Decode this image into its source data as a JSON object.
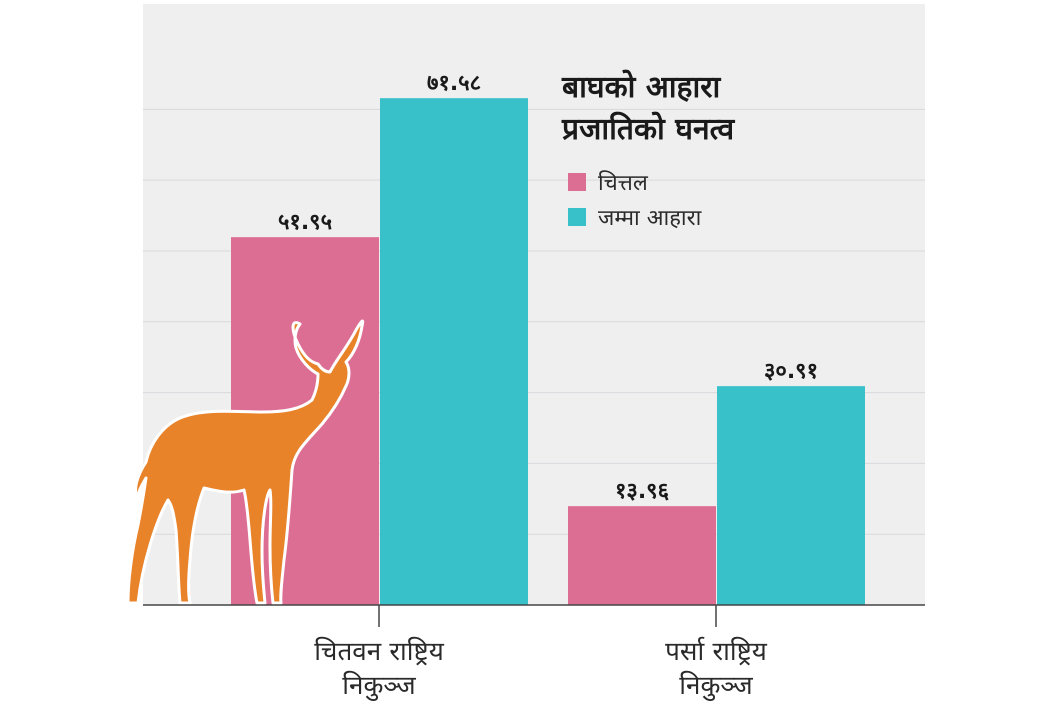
{
  "chart_data": {
    "type": "bar",
    "title_lines": [
      "बाघको आहारा",
      "प्रजातिको घनत्व"
    ],
    "categories": [
      {
        "lines": [
          "चितवन राष्ट्रिय",
          "निकुञ्ज"
        ]
      },
      {
        "lines": [
          "पर्सा राष्ट्रिय",
          "निकुञ्ज"
        ]
      }
    ],
    "series": [
      {
        "name": "चित्तल",
        "color": "#dd6e93",
        "values": [
          51.95,
          13.96
        ],
        "labels": [
          "५१.९५",
          "१३.९६"
        ]
      },
      {
        "name": "जम्मा आहारा",
        "color": "#38c1c9",
        "values": [
          71.58,
          30.91
        ],
        "labels": [
          "७१.५८",
          "३०.९१"
        ]
      }
    ],
    "ylim": [
      0,
      80
    ],
    "grid": true,
    "legend_position": "top-right",
    "background": "#efeff0",
    "illustration": {
      "subject": "deer-silhouette",
      "color": "#e8832a"
    }
  }
}
